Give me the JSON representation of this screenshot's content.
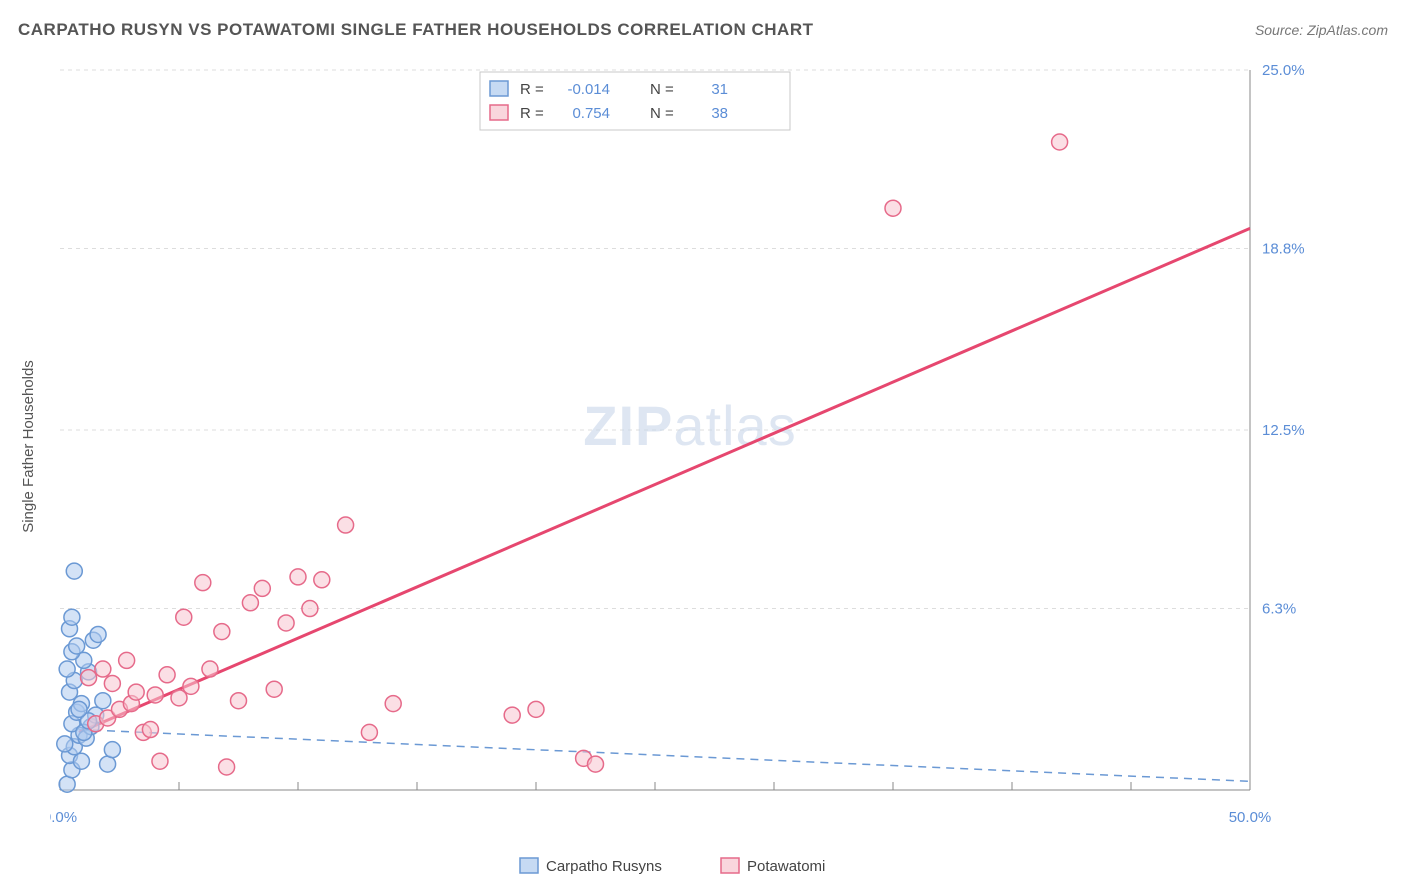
{
  "title": "CARPATHO RUSYN VS POTAWATOMI SINGLE FATHER HOUSEHOLDS CORRELATION CHART",
  "source_label": "Source: ",
  "source_value": "ZipAtlas.com",
  "ylabel": "Single Father Households",
  "watermark_bold": "ZIP",
  "watermark_light": "atlas",
  "chart": {
    "type": "scatter",
    "background_color": "#ffffff",
    "grid_color": "#dddddd",
    "axis_color": "#888888",
    "tick_label_color": "#5b8dd6",
    "text_color": "#555555",
    "xlim": [
      0,
      50
    ],
    "ylim": [
      0,
      25
    ],
    "x_major_ticks": [
      0,
      50
    ],
    "x_minor_tick_step": 5,
    "y_ticks": [
      0,
      6.3,
      12.5,
      18.8,
      25.0
    ],
    "y_tick_labels": [
      "0.0%",
      "6.3%",
      "12.5%",
      "18.8%",
      "25.0%"
    ],
    "x_tick_labels": [
      "0.0%",
      "50.0%"
    ],
    "marker_radius": 8,
    "marker_stroke_width": 1.5,
    "trend_line_width": 3,
    "series": [
      {
        "name": "Carpatho Rusyns",
        "fill": "#aecbee",
        "stroke": "#6b99d4",
        "fill_opacity": 0.55,
        "R": "-0.014",
        "N": "31",
        "trend": {
          "x1": 0.8,
          "y1": 2.1,
          "x2": 50,
          "y2": 0.3,
          "dash": "8 6",
          "width": 1.5,
          "color": "#6b99d4"
        },
        "points": [
          [
            0.3,
            0.2
          ],
          [
            0.5,
            0.7
          ],
          [
            0.4,
            1.2
          ],
          [
            0.6,
            1.5
          ],
          [
            0.8,
            1.9
          ],
          [
            0.5,
            2.3
          ],
          [
            0.7,
            2.7
          ],
          [
            0.9,
            3.0
          ],
          [
            0.4,
            3.4
          ],
          [
            0.6,
            3.8
          ],
          [
            1.2,
            4.1
          ],
          [
            1.0,
            4.5
          ],
          [
            0.5,
            4.8
          ],
          [
            0.7,
            5.0
          ],
          [
            1.4,
            5.2
          ],
          [
            1.6,
            5.4
          ],
          [
            1.1,
            1.8
          ],
          [
            1.3,
            2.2
          ],
          [
            1.5,
            2.6
          ],
          [
            1.8,
            3.1
          ],
          [
            2.0,
            0.9
          ],
          [
            2.2,
            1.4
          ],
          [
            0.6,
            7.6
          ],
          [
            0.9,
            1.0
          ],
          [
            1.0,
            2.0
          ],
          [
            1.2,
            2.4
          ],
          [
            0.8,
            2.8
          ],
          [
            0.4,
            5.6
          ],
          [
            0.5,
            6.0
          ],
          [
            0.2,
            1.6
          ],
          [
            0.3,
            4.2
          ]
        ]
      },
      {
        "name": "Potawatomi",
        "fill": "#f7c4cf",
        "stroke": "#e66a8a",
        "fill_opacity": 0.55,
        "R": "0.754",
        "N": "38",
        "trend": {
          "x1": 0.8,
          "y1": 2.0,
          "x2": 50,
          "y2": 19.5,
          "dash": null,
          "width": 3,
          "color": "#e6476f"
        },
        "points": [
          [
            1.5,
            2.3
          ],
          [
            2.0,
            2.5
          ],
          [
            2.5,
            2.8
          ],
          [
            3.0,
            3.0
          ],
          [
            3.2,
            3.4
          ],
          [
            3.5,
            2.0
          ],
          [
            4.0,
            3.3
          ],
          [
            4.5,
            4.0
          ],
          [
            5.0,
            3.2
          ],
          [
            5.2,
            6.0
          ],
          [
            5.5,
            3.6
          ],
          [
            6.0,
            7.2
          ],
          [
            6.3,
            4.2
          ],
          [
            6.8,
            5.5
          ],
          [
            7.0,
            0.8
          ],
          [
            7.5,
            3.1
          ],
          [
            8.0,
            6.5
          ],
          [
            8.5,
            7.0
          ],
          [
            9.0,
            3.5
          ],
          [
            9.5,
            5.8
          ],
          [
            10.0,
            7.4
          ],
          [
            10.5,
            6.3
          ],
          [
            11.0,
            7.3
          ],
          [
            12.0,
            9.2
          ],
          [
            13.0,
            2.0
          ],
          [
            14.0,
            3.0
          ],
          [
            19.0,
            2.6
          ],
          [
            20.0,
            2.8
          ],
          [
            22.0,
            1.1
          ],
          [
            22.5,
            0.9
          ],
          [
            35.0,
            20.2
          ],
          [
            42.0,
            22.5
          ],
          [
            3.8,
            2.1
          ],
          [
            4.2,
            1.0
          ],
          [
            2.8,
            4.5
          ],
          [
            1.2,
            3.9
          ],
          [
            1.8,
            4.2
          ],
          [
            2.2,
            3.7
          ]
        ]
      }
    ],
    "legend_top": {
      "box_stroke": "#c8c8c8",
      "label_R": "R =",
      "label_N": "N =",
      "value_color": "#5b8dd6",
      "text_color": "#444444"
    },
    "legend_bottom": {
      "text_color": "#444444"
    }
  }
}
